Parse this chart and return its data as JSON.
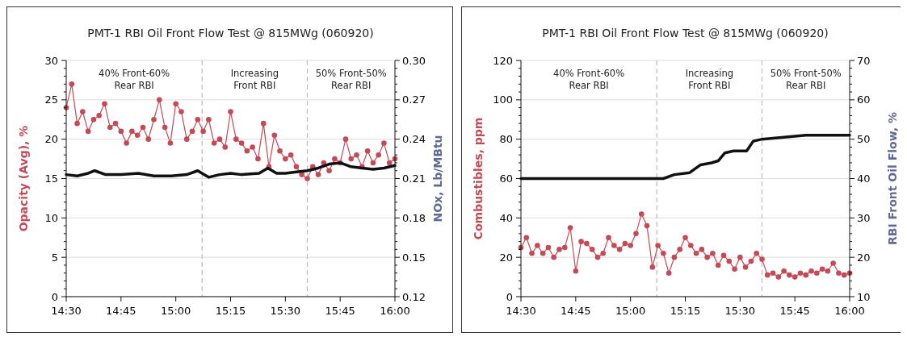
{
  "chart_data": [
    {
      "type": "line",
      "title": "PMT-1 RBI Oil Front Flow Test @ 815MWg (060920)",
      "ylabel": "Opacity (Avg), %",
      "y2label": "NOx, Lb/MBtu",
      "xlim": [
        14.5,
        16
      ],
      "xticks": [
        {
          "value": 14.5,
          "label": "14:30"
        },
        {
          "value": 14.75,
          "label": "14:45"
        },
        {
          "value": 15,
          "label": "15:00"
        },
        {
          "value": 15.25,
          "label": "15:15"
        },
        {
          "value": 15.5,
          "label": "15:30"
        },
        {
          "value": 15.75,
          "label": "15:45"
        },
        {
          "value": 16,
          "label": "16:00"
        }
      ],
      "ylim": [
        0,
        30
      ],
      "yticks": [
        0,
        5,
        10,
        15,
        20,
        25,
        30
      ],
      "y2lim": [
        0.12,
        0.3
      ],
      "y2ticks": [
        {
          "value": 0.12,
          "label": "0.12"
        },
        {
          "value": 0.15,
          "label": "0.15"
        },
        {
          "value": 0.18,
          "label": "0.18"
        },
        {
          "value": 0.21,
          "label": "0.21"
        },
        {
          "value": 0.24,
          "label": "0.24"
        },
        {
          "value": 0.27,
          "label": "0.27"
        },
        {
          "value": 0.3,
          "label": "0.30"
        }
      ],
      "grid": "y",
      "ref_lines": [
        {
          "axis": "x",
          "value": 15.12,
          "color": "#bbbbbb",
          "line_style": "dashed"
        },
        {
          "axis": "x",
          "value": 15.6,
          "color": "#bbbbbb",
          "line_style": "dashed"
        }
      ],
      "annotations": [
        "40% Front-60%\nRear RBI",
        "Increasing\nFront RBI",
        "50% Front-50%\nRear RBI"
      ],
      "series": [
        {
          "type": "line",
          "color": "#c44a56",
          "marker": "circle",
          "x": [
            14.5,
            14.525,
            14.55,
            14.575,
            14.6,
            14.625,
            14.65,
            14.675,
            14.7,
            14.725,
            14.75,
            14.775,
            14.8,
            14.825,
            14.85,
            14.875,
            14.9,
            14.925,
            14.95,
            14.975,
            15,
            15.025,
            15.05,
            15.075,
            15.1,
            15.125,
            15.15,
            15.175,
            15.2,
            15.225,
            15.25,
            15.275,
            15.3,
            15.325,
            15.35,
            15.375,
            15.4,
            15.425,
            15.45,
            15.475,
            15.5,
            15.525,
            15.55,
            15.575,
            15.6,
            15.625,
            15.65,
            15.675,
            15.7,
            15.725,
            15.75,
            15.775,
            15.8,
            15.825,
            15.85,
            15.875,
            15.9,
            15.925,
            15.95,
            15.975,
            16
          ],
          "values": [
            24,
            27,
            22,
            23.5,
            21,
            22.5,
            23,
            24.5,
            21.5,
            22,
            21,
            19.5,
            21,
            20.5,
            21.5,
            20,
            22.5,
            25,
            21.5,
            19.5,
            24.5,
            23.5,
            20,
            21,
            22.5,
            21,
            22.5,
            19.5,
            20,
            19,
            23.5,
            20,
            19.5,
            18.5,
            19,
            17.5,
            22,
            16.5,
            20.5,
            18.5,
            17.5,
            18,
            16.5,
            15.5,
            15,
            16.5,
            15.5,
            17,
            16,
            17.5,
            17,
            20,
            17.5,
            18,
            16.5,
            18.5,
            17,
            18,
            19.5,
            17,
            17.5
          ]
        },
        {
          "type": "line",
          "color": "#111111",
          "marker": "none",
          "axis": "y2",
          "x": [
            14.5,
            14.55,
            14.6,
            14.63,
            14.68,
            14.75,
            14.83,
            14.9,
            14.98,
            15.05,
            15.1,
            15.15,
            15.2,
            15.25,
            15.3,
            15.38,
            15.42,
            15.46,
            15.5,
            15.55,
            15.6,
            15.65,
            15.7,
            15.75,
            15.8,
            15.85,
            15.9,
            15.95,
            16
          ],
          "values": [
            0.213,
            0.212,
            0.214,
            0.216,
            0.213,
            0.213,
            0.214,
            0.212,
            0.212,
            0.213,
            0.216,
            0.211,
            0.213,
            0.214,
            0.213,
            0.214,
            0.218,
            0.214,
            0.214,
            0.215,
            0.216,
            0.218,
            0.221,
            0.222,
            0.219,
            0.218,
            0.217,
            0.218,
            0.22
          ]
        }
      ]
    },
    {
      "type": "line",
      "title": "PMT-1 RBI Oil Front Flow Test @ 815MWg (060920)",
      "ylabel": "Combustibles, ppm",
      "y2label": "RBI Front Oil Flow, %",
      "xlim": [
        14.5,
        16
      ],
      "xticks": [
        {
          "value": 14.5,
          "label": "14:30"
        },
        {
          "value": 14.75,
          "label": "14:45"
        },
        {
          "value": 15,
          "label": "15:00"
        },
        {
          "value": 15.25,
          "label": "15:15"
        },
        {
          "value": 15.5,
          "label": "15:30"
        },
        {
          "value": 15.75,
          "label": "15:45"
        },
        {
          "value": 16,
          "label": "16:00"
        }
      ],
      "ylim": [
        0,
        120
      ],
      "yticks": [
        0,
        20,
        40,
        60,
        80,
        100,
        120
      ],
      "y2lim": [
        10,
        70
      ],
      "y2ticks": [
        10,
        20,
        30,
        40,
        50,
        60,
        70
      ],
      "grid": "y",
      "ref_lines": [
        {
          "axis": "x",
          "value": 15.12,
          "color": "#bbbbbb",
          "line_style": "dashed"
        },
        {
          "axis": "x",
          "value": 15.6,
          "color": "#bbbbbb",
          "line_style": "dashed"
        }
      ],
      "annotations": [
        "40% Front-60%\nRear RBI",
        "Increasing\nFront RBI",
        "50% Front-50%\nRear RBI"
      ],
      "series": [
        {
          "type": "line",
          "color": "#c44a56",
          "marker": "circle",
          "x": [
            14.5,
            14.525,
            14.55,
            14.575,
            14.6,
            14.625,
            14.65,
            14.675,
            14.7,
            14.725,
            14.75,
            14.775,
            14.8,
            14.825,
            14.85,
            14.875,
            14.9,
            14.925,
            14.95,
            14.975,
            15,
            15.025,
            15.05,
            15.075,
            15.1,
            15.125,
            15.15,
            15.175,
            15.2,
            15.225,
            15.25,
            15.275,
            15.3,
            15.325,
            15.35,
            15.375,
            15.4,
            15.425,
            15.45,
            15.475,
            15.5,
            15.525,
            15.55,
            15.575,
            15.6,
            15.625,
            15.65,
            15.675,
            15.7,
            15.725,
            15.75,
            15.775,
            15.8,
            15.825,
            15.85,
            15.875,
            15.9,
            15.925,
            15.95,
            15.975,
            16
          ],
          "values": [
            25,
            30,
            22,
            26,
            22,
            25,
            20,
            24,
            25,
            35,
            13,
            28,
            27,
            24,
            20,
            22,
            30,
            26,
            24,
            27,
            26,
            32,
            42,
            36,
            15,
            26,
            22,
            12,
            20,
            24,
            30,
            26,
            22,
            24,
            20,
            22,
            16,
            21,
            18,
            14,
            20,
            15,
            18,
            22,
            19,
            11,
            12,
            10,
            13,
            11,
            10,
            12,
            11,
            13,
            12,
            14,
            13,
            17,
            12,
            11,
            12
          ]
        },
        {
          "type": "line",
          "color": "#111111",
          "marker": "none",
          "axis": "y2",
          "x": [
            14.5,
            15.15,
            15.2,
            15.27,
            15.32,
            15.37,
            15.4,
            15.43,
            15.47,
            15.53,
            15.56,
            15.6,
            15.7,
            15.8,
            16
          ],
          "values": [
            40,
            40,
            41,
            41.5,
            43.5,
            44,
            44.5,
            46.5,
            47,
            47,
            49.5,
            50,
            50.5,
            51,
            51
          ]
        }
      ]
    }
  ]
}
